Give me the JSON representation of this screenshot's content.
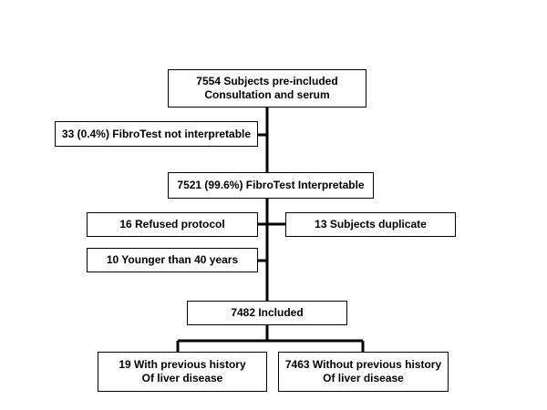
{
  "flowchart": {
    "n1": {
      "line1": "7554 Subjects pre-included",
      "line2": "Consultation and serum"
    },
    "n2": {
      "text": "33 (0.4%) FibroTest not interpretable"
    },
    "n3": {
      "text": "7521 (99.6%) FibroTest Interpretable"
    },
    "n4": {
      "text": "16 Refused protocol"
    },
    "n5": {
      "text": "13 Subjects duplicate"
    },
    "n6": {
      "text": "10 Younger than 40 years"
    },
    "n7": {
      "text": "7482 Included"
    },
    "n8": {
      "line1": "19 With previous history",
      "line2": "Of liver disease"
    },
    "n9": {
      "line1": "7463 Without previous history",
      "line2": "Of liver disease"
    }
  }
}
